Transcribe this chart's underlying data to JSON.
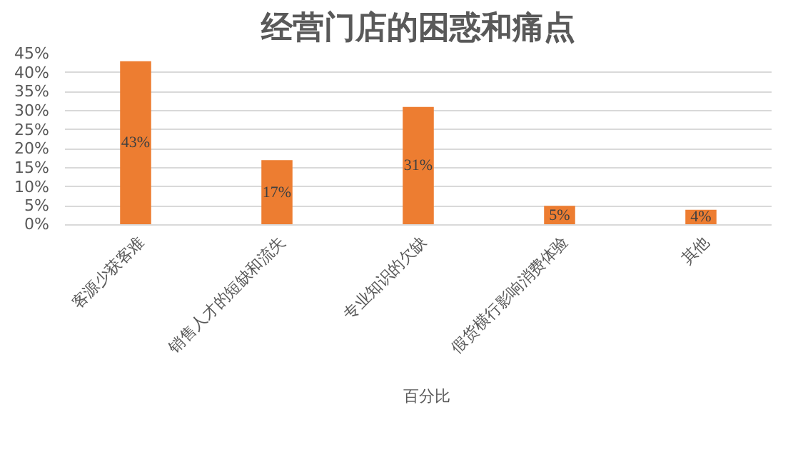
{
  "chart_data": {
    "type": "bar",
    "title": "经营门店的困惑和痛点",
    "categories": [
      "客源少获客难",
      "销售人才的短缺和流失",
      "专业知识的欠缺",
      "假货横行影响消费体验",
      "其他"
    ],
    "series": [
      {
        "name": "百分比",
        "color": "#ed7d31",
        "values": [
          43,
          17,
          31,
          5,
          4
        ]
      }
    ],
    "ylim": [
      0,
      45
    ],
    "yticks": [
      {
        "value": 0,
        "label": "0%"
      },
      {
        "value": 5,
        "label": "5%"
      },
      {
        "value": 10,
        "label": "10%"
      },
      {
        "value": 15,
        "label": "15%"
      },
      {
        "value": 20,
        "label": "20%"
      },
      {
        "value": 25,
        "label": "25%"
      },
      {
        "value": 30,
        "label": "30%"
      },
      {
        "value": 35,
        "label": "35%"
      },
      {
        "value": 40,
        "label": "40%"
      },
      {
        "value": 45,
        "label": "45%"
      }
    ],
    "value_labels": [
      "43%",
      "17%",
      "31%",
      "5%",
      "4%"
    ],
    "grid": "y",
    "legend": "bottom"
  }
}
